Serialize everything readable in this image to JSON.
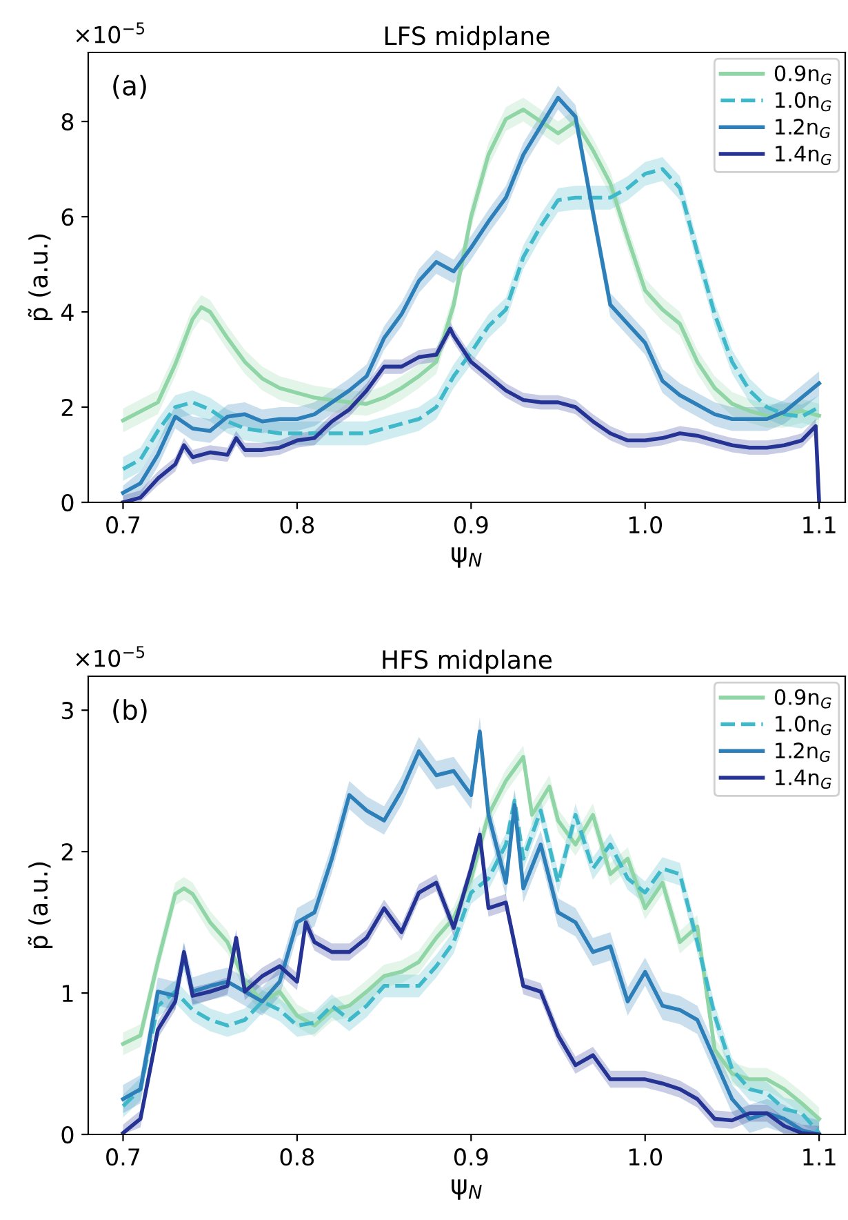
{
  "chart_data": [
    {
      "type": "line",
      "title": "LFS midplane",
      "xlabel": "ψ$_{N}$",
      "ylabel": "p̃ (a.u.)",
      "annotations": [
        "(a)",
        "×10$^{−5}$"
      ],
      "xlim": [
        0.68,
        1.115
      ],
      "xticks": [
        0.7,
        0.8,
        0.9,
        {
          "value": 1.0,
          "label": "1.0"
        },
        1.1
      ],
      "ylim": [
        0,
        9.45
      ],
      "yticks": [
        0,
        2,
        4,
        6,
        8
      ],
      "grid": false,
      "legend": "top right",
      "series": [
        {
          "name": "0.9n$_{G}$",
          "color": "#8fd5a6",
          "line_style": "solid",
          "x": [
            0.7,
            0.72,
            0.73,
            0.74,
            0.745,
            0.75,
            0.76,
            0.77,
            0.78,
            0.79,
            0.8,
            0.81,
            0.82,
            0.83,
            0.84,
            0.85,
            0.86,
            0.87,
            0.88,
            0.89,
            0.9,
            0.91,
            0.92,
            0.93,
            0.94,
            0.95,
            0.96,
            0.97,
            0.98,
            0.99,
            1.0,
            1.01,
            1.02,
            1.03,
            1.04,
            1.05,
            1.06,
            1.07,
            1.08,
            1.09,
            1.1
          ],
          "values": [
            1.72,
            2.1,
            2.9,
            3.85,
            4.1,
            4.0,
            3.45,
            2.95,
            2.6,
            2.4,
            2.3,
            2.2,
            2.15,
            2.1,
            2.07,
            2.2,
            2.4,
            2.65,
            2.95,
            4.15,
            6.0,
            7.3,
            8.05,
            8.25,
            8.0,
            7.75,
            8.0,
            7.4,
            6.7,
            5.55,
            4.45,
            4.05,
            3.75,
            2.95,
            2.4,
            2.07,
            1.92,
            1.82,
            1.82,
            1.92,
            1.82
          ],
          "lower": [
            1.47,
            1.85,
            2.65,
            3.6,
            3.85,
            3.75,
            3.2,
            2.7,
            2.35,
            2.15,
            2.05,
            1.95,
            1.9,
            1.85,
            1.82,
            1.95,
            2.15,
            2.4,
            2.7,
            3.9,
            5.75,
            7.05,
            7.8,
            8.0,
            7.75,
            7.5,
            7.75,
            7.15,
            6.45,
            5.3,
            4.2,
            3.8,
            3.5,
            2.7,
            2.15,
            1.82,
            1.67,
            1.57,
            1.57,
            1.67,
            1.57
          ],
          "upper": [
            1.97,
            2.35,
            3.15,
            4.1,
            4.35,
            4.25,
            3.7,
            3.2,
            2.85,
            2.65,
            2.55,
            2.45,
            2.4,
            2.35,
            2.32,
            2.45,
            2.65,
            2.9,
            3.2,
            4.4,
            6.25,
            7.55,
            8.3,
            8.5,
            8.25,
            8.0,
            8.25,
            7.65,
            6.95,
            5.8,
            4.7,
            4.3,
            4.0,
            3.2,
            2.65,
            2.32,
            2.17,
            2.07,
            2.07,
            2.17,
            2.07
          ]
        },
        {
          "name": "1.0n$_{G}$",
          "color": "#3fb9c9",
          "line_style": "dashed",
          "x": [
            0.7,
            0.71,
            0.72,
            0.73,
            0.74,
            0.75,
            0.76,
            0.77,
            0.78,
            0.79,
            0.8,
            0.81,
            0.82,
            0.83,
            0.84,
            0.85,
            0.86,
            0.87,
            0.88,
            0.89,
            0.9,
            0.91,
            0.92,
            0.93,
            0.94,
            0.95,
            0.96,
            0.97,
            0.98,
            0.99,
            1.0,
            1.01,
            1.02,
            1.03,
            1.04,
            1.05,
            1.06,
            1.07,
            1.08,
            1.09,
            1.1
          ],
          "values": [
            0.7,
            0.9,
            1.5,
            2.0,
            2.1,
            1.95,
            1.7,
            1.55,
            1.5,
            1.45,
            1.45,
            1.45,
            1.45,
            1.45,
            1.45,
            1.55,
            1.65,
            1.75,
            2.0,
            2.65,
            3.15,
            3.7,
            4.05,
            5.15,
            5.8,
            6.35,
            6.4,
            6.4,
            6.4,
            6.6,
            6.9,
            7.0,
            6.6,
            5.25,
            3.95,
            2.95,
            2.35,
            2.0,
            1.85,
            1.8,
            2.0
          ],
          "lower": [
            0.45,
            0.65,
            1.25,
            1.75,
            1.85,
            1.7,
            1.45,
            1.3,
            1.25,
            1.2,
            1.2,
            1.2,
            1.2,
            1.2,
            1.2,
            1.3,
            1.4,
            1.5,
            1.75,
            2.4,
            2.9,
            3.45,
            3.8,
            4.9,
            5.55,
            6.1,
            6.15,
            6.15,
            6.15,
            6.35,
            6.65,
            6.75,
            6.35,
            5.0,
            3.7,
            2.7,
            2.1,
            1.75,
            1.6,
            1.55,
            1.75
          ],
          "upper": [
            0.95,
            1.15,
            1.75,
            2.25,
            2.35,
            2.2,
            1.95,
            1.8,
            1.75,
            1.7,
            1.7,
            1.7,
            1.7,
            1.7,
            1.7,
            1.8,
            1.9,
            2.0,
            2.25,
            2.9,
            3.4,
            3.95,
            4.3,
            5.4,
            6.05,
            6.6,
            6.65,
            6.65,
            6.65,
            6.85,
            7.15,
            7.25,
            6.85,
            5.5,
            4.2,
            3.2,
            2.6,
            2.25,
            2.1,
            2.05,
            2.25
          ]
        },
        {
          "name": "1.2n$_{G}$",
          "color": "#2c7fb8",
          "line_style": "solid",
          "x": [
            0.7,
            0.71,
            0.72,
            0.73,
            0.74,
            0.75,
            0.76,
            0.77,
            0.78,
            0.79,
            0.8,
            0.81,
            0.82,
            0.83,
            0.84,
            0.85,
            0.86,
            0.87,
            0.88,
            0.89,
            0.9,
            0.91,
            0.92,
            0.93,
            0.94,
            0.95,
            0.96,
            0.97,
            0.98,
            0.99,
            1.0,
            1.01,
            1.02,
            1.03,
            1.04,
            1.05,
            1.06,
            1.07,
            1.08,
            1.09,
            1.1
          ],
          "values": [
            0.2,
            0.4,
            1.0,
            1.8,
            1.55,
            1.5,
            1.8,
            1.85,
            1.7,
            1.75,
            1.75,
            1.85,
            2.1,
            2.35,
            2.65,
            3.45,
            3.95,
            4.65,
            5.05,
            4.85,
            5.35,
            5.9,
            6.4,
            7.3,
            7.9,
            8.5,
            8.1,
            6.1,
            4.15,
            3.75,
            3.35,
            2.55,
            2.25,
            2.05,
            1.85,
            1.75,
            1.75,
            1.75,
            1.9,
            2.2,
            2.5
          ],
          "lower": [
            0.05,
            0.15,
            0.75,
            1.55,
            1.3,
            1.25,
            1.55,
            1.6,
            1.45,
            1.5,
            1.5,
            1.6,
            1.85,
            2.1,
            2.4,
            3.2,
            3.7,
            4.4,
            4.8,
            4.6,
            5.1,
            5.65,
            6.15,
            7.05,
            7.65,
            8.25,
            7.85,
            5.85,
            3.9,
            3.5,
            3.1,
            2.3,
            2.0,
            1.8,
            1.6,
            1.5,
            1.5,
            1.5,
            1.65,
            1.95,
            2.25
          ],
          "upper": [
            0.35,
            0.65,
            1.25,
            2.05,
            1.8,
            1.75,
            2.05,
            2.1,
            1.95,
            2.0,
            2.0,
            2.1,
            2.35,
            2.6,
            2.9,
            3.7,
            4.2,
            4.9,
            5.3,
            5.1,
            5.6,
            6.15,
            6.65,
            7.55,
            8.15,
            8.75,
            8.35,
            6.35,
            4.4,
            4.0,
            3.6,
            2.8,
            2.5,
            2.3,
            2.1,
            2.0,
            2.0,
            2.0,
            2.15,
            2.45,
            2.75
          ]
        },
        {
          "name": "1.4n$_{G}$",
          "color": "#253494",
          "line_style": "solid",
          "x": [
            0.7,
            0.71,
            0.72,
            0.73,
            0.735,
            0.74,
            0.75,
            0.76,
            0.765,
            0.77,
            0.78,
            0.79,
            0.8,
            0.81,
            0.82,
            0.83,
            0.84,
            0.85,
            0.86,
            0.87,
            0.88,
            0.888,
            0.89,
            0.9,
            0.91,
            0.92,
            0.93,
            0.94,
            0.95,
            0.96,
            0.97,
            0.98,
            0.99,
            1.0,
            1.01,
            1.02,
            1.03,
            1.04,
            1.05,
            1.06,
            1.07,
            1.08,
            1.09,
            1.098,
            1.1
          ],
          "values": [
            0.0,
            0.1,
            0.5,
            0.8,
            1.2,
            0.95,
            1.05,
            1.0,
            1.35,
            1.1,
            1.1,
            1.15,
            1.3,
            1.35,
            1.7,
            1.95,
            2.35,
            2.85,
            2.85,
            3.05,
            3.1,
            3.65,
            3.5,
            2.95,
            2.65,
            2.35,
            2.15,
            2.1,
            2.1,
            2.0,
            1.7,
            1.45,
            1.3,
            1.3,
            1.35,
            1.45,
            1.4,
            1.3,
            1.2,
            1.15,
            1.15,
            1.2,
            1.3,
            1.6,
            0.0
          ],
          "lower": [
            0.0,
            0.0,
            0.35,
            0.65,
            1.05,
            0.8,
            0.9,
            0.85,
            1.2,
            0.95,
            0.95,
            1.0,
            1.15,
            1.2,
            1.55,
            1.8,
            2.2,
            2.7,
            2.7,
            2.9,
            2.95,
            3.5,
            3.35,
            2.8,
            2.5,
            2.2,
            2.0,
            1.95,
            1.95,
            1.85,
            1.55,
            1.3,
            1.15,
            1.15,
            1.2,
            1.3,
            1.25,
            1.15,
            1.05,
            1.0,
            1.0,
            1.05,
            1.15,
            1.45,
            0.0
          ],
          "upper": [
            0.15,
            0.25,
            0.65,
            0.95,
            1.35,
            1.1,
            1.2,
            1.15,
            1.5,
            1.25,
            1.25,
            1.3,
            1.45,
            1.5,
            1.85,
            2.1,
            2.5,
            3.0,
            3.0,
            3.2,
            3.25,
            3.8,
            3.65,
            3.1,
            2.8,
            2.5,
            2.3,
            2.25,
            2.25,
            2.15,
            1.85,
            1.6,
            1.45,
            1.45,
            1.5,
            1.6,
            1.55,
            1.45,
            1.35,
            1.3,
            1.3,
            1.35,
            1.45,
            1.75,
            0.0
          ]
        }
      ]
    },
    {
      "type": "line",
      "title": "HFS midplane",
      "xlabel": "ψ$_{N}$",
      "ylabel": "p̃ (a.u.)",
      "annotations": [
        "(b)",
        "×10$^{−5}$"
      ],
      "xlim": [
        0.68,
        1.115
      ],
      "xticks": [
        0.7,
        0.8,
        0.9,
        {
          "value": 1.0,
          "label": "1.0"
        },
        1.1
      ],
      "ylim": [
        0,
        3.24
      ],
      "yticks": [
        0,
        1,
        2,
        3
      ],
      "grid": false,
      "legend": "top right",
      "series": [
        {
          "name": "0.9n$_{G}$",
          "color": "#8fd5a6",
          "line_style": "solid",
          "x": [
            0.7,
            0.71,
            0.72,
            0.73,
            0.735,
            0.74,
            0.75,
            0.76,
            0.77,
            0.78,
            0.79,
            0.8,
            0.81,
            0.82,
            0.83,
            0.84,
            0.85,
            0.86,
            0.87,
            0.88,
            0.89,
            0.9,
            0.91,
            0.92,
            0.93,
            0.935,
            0.945,
            0.95,
            0.96,
            0.97,
            0.98,
            0.99,
            1.0,
            1.01,
            1.02,
            1.03,
            1.04,
            1.05,
            1.06,
            1.07,
            1.08,
            1.09,
            1.1
          ],
          "values": [
            0.64,
            0.7,
            1.22,
            1.7,
            1.74,
            1.7,
            1.5,
            1.36,
            1.08,
            0.94,
            1.01,
            0.84,
            0.77,
            0.88,
            0.91,
            1.01,
            1.12,
            1.15,
            1.22,
            1.39,
            1.53,
            1.81,
            2.26,
            2.5,
            2.67,
            2.26,
            2.46,
            2.22,
            2.05,
            2.26,
            1.84,
            1.95,
            1.6,
            1.78,
            1.36,
            1.47,
            0.6,
            0.43,
            0.39,
            0.39,
            0.32,
            0.22,
            0.11
          ],
          "lower": [
            0.56,
            0.62,
            1.14,
            1.62,
            1.66,
            1.62,
            1.42,
            1.28,
            1.0,
            0.86,
            0.93,
            0.76,
            0.69,
            0.8,
            0.83,
            0.93,
            1.04,
            1.07,
            1.14,
            1.31,
            1.45,
            1.73,
            2.18,
            2.42,
            2.59,
            2.18,
            2.38,
            2.14,
            1.97,
            2.18,
            1.76,
            1.87,
            1.52,
            1.7,
            1.28,
            1.39,
            0.52,
            0.35,
            0.31,
            0.31,
            0.24,
            0.14,
            0.03
          ],
          "upper": [
            0.72,
            0.78,
            1.3,
            1.78,
            1.82,
            1.78,
            1.58,
            1.44,
            1.16,
            1.02,
            1.09,
            0.92,
            0.85,
            0.96,
            0.99,
            1.09,
            1.2,
            1.23,
            1.3,
            1.47,
            1.61,
            1.89,
            2.34,
            2.58,
            2.75,
            2.34,
            2.54,
            2.3,
            2.13,
            2.34,
            1.92,
            2.03,
            1.68,
            1.86,
            1.44,
            1.55,
            0.68,
            0.51,
            0.47,
            0.47,
            0.4,
            0.3,
            0.19
          ]
        },
        {
          "name": "1.0n$_{G}$",
          "color": "#3fb9c9",
          "line_style": "dashed",
          "x": [
            0.7,
            0.71,
            0.72,
            0.73,
            0.74,
            0.75,
            0.76,
            0.77,
            0.78,
            0.79,
            0.8,
            0.81,
            0.82,
            0.83,
            0.84,
            0.85,
            0.86,
            0.87,
            0.88,
            0.89,
            0.9,
            0.91,
            0.92,
            0.925,
            0.93,
            0.94,
            0.95,
            0.96,
            0.97,
            0.98,
            0.99,
            1.0,
            1.01,
            1.02,
            1.03,
            1.04,
            1.05,
            1.06,
            1.07,
            1.08,
            1.09,
            1.1
          ],
          "values": [
            0.2,
            0.32,
            0.91,
            1.01,
            0.88,
            0.81,
            0.77,
            0.81,
            0.94,
            0.88,
            0.77,
            0.79,
            0.91,
            0.81,
            0.91,
            1.05,
            1.05,
            1.05,
            1.19,
            1.36,
            1.71,
            1.81,
            2.05,
            2.36,
            1.95,
            2.29,
            1.78,
            2.26,
            1.88,
            2.05,
            1.81,
            1.71,
            1.88,
            1.84,
            1.36,
            0.84,
            0.46,
            0.32,
            0.29,
            0.18,
            0.15,
            0.01
          ],
          "lower": [
            0.12,
            0.24,
            0.83,
            0.93,
            0.8,
            0.73,
            0.69,
            0.73,
            0.86,
            0.8,
            0.69,
            0.71,
            0.83,
            0.73,
            0.83,
            0.97,
            0.97,
            0.97,
            1.11,
            1.28,
            1.63,
            1.73,
            1.97,
            2.28,
            1.87,
            2.21,
            1.7,
            2.18,
            1.8,
            1.97,
            1.73,
            1.63,
            1.8,
            1.76,
            1.28,
            0.76,
            0.38,
            0.24,
            0.21,
            0.1,
            0.07,
            0.0
          ],
          "upper": [
            0.28,
            0.4,
            0.99,
            1.09,
            0.96,
            0.89,
            0.85,
            0.89,
            1.02,
            0.96,
            0.85,
            0.87,
            0.99,
            0.89,
            0.99,
            1.13,
            1.13,
            1.13,
            1.27,
            1.44,
            1.79,
            1.89,
            2.13,
            2.44,
            2.03,
            2.37,
            1.86,
            2.34,
            1.96,
            2.13,
            1.89,
            1.79,
            1.96,
            1.92,
            1.44,
            0.92,
            0.54,
            0.4,
            0.37,
            0.26,
            0.23,
            0.09
          ]
        },
        {
          "name": "1.2n$_{G}$",
          "color": "#2c7fb8",
          "line_style": "solid",
          "x": [
            0.7,
            0.71,
            0.72,
            0.73,
            0.735,
            0.74,
            0.75,
            0.76,
            0.77,
            0.78,
            0.79,
            0.8,
            0.81,
            0.82,
            0.83,
            0.84,
            0.85,
            0.86,
            0.87,
            0.88,
            0.89,
            0.9,
            0.905,
            0.91,
            0.92,
            0.925,
            0.93,
            0.94,
            0.95,
            0.96,
            0.97,
            0.98,
            0.99,
            1.0,
            1.01,
            1.02,
            1.03,
            1.04,
            1.05,
            1.06,
            1.07,
            1.08,
            1.09,
            1.1
          ],
          "values": [
            0.25,
            0.32,
            1.01,
            0.98,
            1.26,
            1.01,
            1.05,
            1.08,
            1.01,
            0.94,
            1.08,
            1.5,
            1.57,
            1.95,
            2.4,
            2.29,
            2.22,
            2.43,
            2.71,
            2.54,
            2.57,
            2.4,
            2.85,
            2.26,
            1.78,
            2.33,
            1.74,
            2.05,
            1.57,
            1.5,
            1.29,
            1.33,
            0.94,
            1.15,
            0.91,
            0.88,
            0.81,
            0.53,
            0.25,
            0.11,
            0.15,
            0.11,
            0.03,
            0.0
          ],
          "lower": [
            0.15,
            0.22,
            0.91,
            0.88,
            1.16,
            0.91,
            0.95,
            0.98,
            0.91,
            0.84,
            0.98,
            1.4,
            1.47,
            1.85,
            2.3,
            2.19,
            2.12,
            2.33,
            2.61,
            2.44,
            2.47,
            2.3,
            2.75,
            2.16,
            1.68,
            2.23,
            1.64,
            1.95,
            1.47,
            1.4,
            1.19,
            1.23,
            0.84,
            1.05,
            0.81,
            0.78,
            0.71,
            0.43,
            0.15,
            0.01,
            0.05,
            0.01,
            0.0,
            0.0
          ],
          "upper": [
            0.35,
            0.42,
            1.11,
            1.08,
            1.36,
            1.11,
            1.15,
            1.18,
            1.11,
            1.04,
            1.18,
            1.6,
            1.67,
            2.05,
            2.5,
            2.39,
            2.32,
            2.53,
            2.81,
            2.64,
            2.67,
            2.5,
            2.95,
            2.36,
            1.88,
            2.43,
            1.84,
            2.15,
            1.67,
            1.6,
            1.39,
            1.43,
            1.04,
            1.25,
            1.01,
            0.98,
            0.91,
            0.63,
            0.35,
            0.21,
            0.25,
            0.21,
            0.13,
            0.1
          ]
        },
        {
          "name": "1.4n$_{G}$",
          "color": "#253494",
          "line_style": "solid",
          "x": [
            0.7,
            0.71,
            0.72,
            0.73,
            0.735,
            0.74,
            0.75,
            0.76,
            0.765,
            0.77,
            0.78,
            0.79,
            0.8,
            0.805,
            0.81,
            0.82,
            0.83,
            0.84,
            0.85,
            0.86,
            0.87,
            0.88,
            0.89,
            0.9,
            0.905,
            0.91,
            0.92,
            0.93,
            0.94,
            0.95,
            0.96,
            0.97,
            0.98,
            0.99,
            1.0,
            1.01,
            1.02,
            1.03,
            1.04,
            1.05,
            1.06,
            1.07,
            1.08,
            1.09,
            1.1
          ],
          "values": [
            0.01,
            0.11,
            0.74,
            0.94,
            1.29,
            0.98,
            1.01,
            1.05,
            1.39,
            1.01,
            1.12,
            1.19,
            1.08,
            1.5,
            1.36,
            1.29,
            1.29,
            1.39,
            1.6,
            1.43,
            1.71,
            1.78,
            1.46,
            1.88,
            2.12,
            1.6,
            1.64,
            1.05,
            1.01,
            0.7,
            0.49,
            0.56,
            0.39,
            0.39,
            0.39,
            0.36,
            0.32,
            0.25,
            0.11,
            0.1,
            0.15,
            0.15,
            0.06,
            0.01,
            0.0
          ],
          "lower": [
            0.0,
            0.05,
            0.68,
            0.88,
            1.23,
            0.92,
            0.95,
            0.99,
            1.33,
            0.95,
            1.06,
            1.13,
            1.02,
            1.44,
            1.3,
            1.23,
            1.23,
            1.33,
            1.54,
            1.37,
            1.65,
            1.72,
            1.4,
            1.82,
            2.06,
            1.54,
            1.58,
            0.99,
            0.95,
            0.64,
            0.43,
            0.5,
            0.33,
            0.33,
            0.33,
            0.3,
            0.26,
            0.19,
            0.05,
            0.04,
            0.09,
            0.09,
            0.0,
            0.0,
            0.0
          ],
          "upper": [
            0.07,
            0.17,
            0.8,
            1.0,
            1.35,
            1.04,
            1.07,
            1.11,
            1.45,
            1.07,
            1.18,
            1.25,
            1.14,
            1.56,
            1.42,
            1.35,
            1.35,
            1.45,
            1.66,
            1.49,
            1.77,
            1.84,
            1.52,
            1.94,
            2.18,
            1.66,
            1.7,
            1.11,
            1.07,
            0.76,
            0.55,
            0.62,
            0.45,
            0.45,
            0.45,
            0.42,
            0.38,
            0.31,
            0.17,
            0.16,
            0.21,
            0.21,
            0.12,
            0.07,
            0.06
          ]
        }
      ]
    }
  ]
}
